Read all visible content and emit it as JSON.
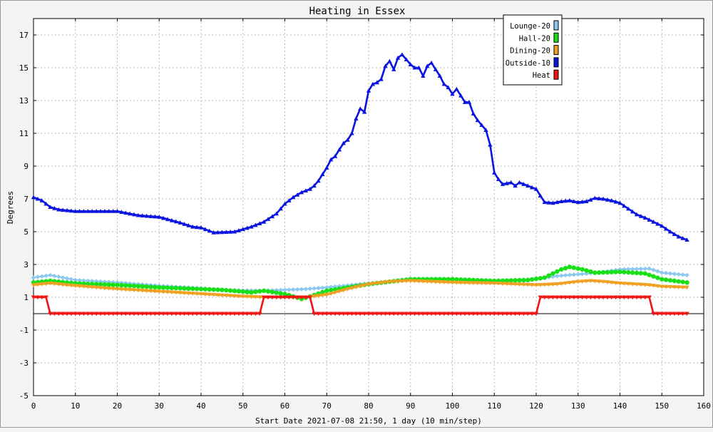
{
  "chart_data": {
    "type": "line",
    "title": "Heating in Essex",
    "xlabel": "Start Date 2021-07-08 21:50, 1 day (10 min/step)",
    "ylabel": "Degrees",
    "xlim": [
      0,
      160
    ],
    "ylim": [
      -5,
      18
    ],
    "xticks": [
      0,
      10,
      20,
      30,
      40,
      50,
      60,
      70,
      80,
      90,
      100,
      110,
      120,
      130,
      140,
      150,
      160
    ],
    "yticks": [
      -5,
      -3,
      -1,
      1,
      3,
      5,
      7,
      9,
      11,
      13,
      15,
      17
    ],
    "grid": true,
    "legend_position": "top-right",
    "series": [
      {
        "name": "Lounge-20",
        "color": "#8cc8f0",
        "marker": "diamond",
        "points": [
          [
            0,
            2.2
          ],
          [
            4,
            2.35
          ],
          [
            10,
            2.05
          ],
          [
            20,
            1.9
          ],
          [
            30,
            1.7
          ],
          [
            40,
            1.55
          ],
          [
            45,
            1.45
          ],
          [
            55,
            1.4
          ],
          [
            60,
            1.45
          ],
          [
            65,
            1.5
          ],
          [
            70,
            1.6
          ],
          [
            80,
            1.85
          ],
          [
            90,
            2.05
          ],
          [
            100,
            2.1
          ],
          [
            110,
            2.0
          ],
          [
            120,
            2.1
          ],
          [
            125,
            2.3
          ],
          [
            130,
            2.4
          ],
          [
            135,
            2.5
          ],
          [
            140,
            2.7
          ],
          [
            147,
            2.75
          ],
          [
            150,
            2.5
          ],
          [
            156,
            2.35
          ]
        ]
      },
      {
        "name": "Hall-20",
        "color": "#18e018",
        "marker": "circle",
        "points": [
          [
            0,
            1.9
          ],
          [
            4,
            2.0
          ],
          [
            10,
            1.85
          ],
          [
            20,
            1.75
          ],
          [
            30,
            1.6
          ],
          [
            40,
            1.5
          ],
          [
            45,
            1.45
          ],
          [
            52,
            1.3
          ],
          [
            55,
            1.4
          ],
          [
            60,
            1.2
          ],
          [
            64,
            0.9
          ],
          [
            66,
            1.05
          ],
          [
            70,
            1.4
          ],
          [
            80,
            1.8
          ],
          [
            90,
            2.1
          ],
          [
            100,
            2.1
          ],
          [
            110,
            2.0
          ],
          [
            118,
            2.05
          ],
          [
            122,
            2.2
          ],
          [
            126,
            2.7
          ],
          [
            128,
            2.85
          ],
          [
            131,
            2.7
          ],
          [
            134,
            2.5
          ],
          [
            140,
            2.55
          ],
          [
            146,
            2.45
          ],
          [
            150,
            2.1
          ],
          [
            156,
            1.9
          ]
        ]
      },
      {
        "name": "Dining-20",
        "color": "#f0a020",
        "marker": "triangle-down",
        "points": [
          [
            0,
            1.75
          ],
          [
            4,
            1.85
          ],
          [
            10,
            1.7
          ],
          [
            20,
            1.5
          ],
          [
            30,
            1.35
          ],
          [
            40,
            1.2
          ],
          [
            50,
            1.05
          ],
          [
            55,
            1.0
          ],
          [
            60,
            1.0
          ],
          [
            65,
            1.0
          ],
          [
            70,
            1.15
          ],
          [
            75,
            1.5
          ],
          [
            80,
            1.8
          ],
          [
            85,
            1.95
          ],
          [
            90,
            2.0
          ],
          [
            95,
            1.95
          ],
          [
            100,
            1.9
          ],
          [
            110,
            1.85
          ],
          [
            120,
            1.75
          ],
          [
            125,
            1.8
          ],
          [
            130,
            1.95
          ],
          [
            133,
            2.0
          ],
          [
            136,
            1.95
          ],
          [
            140,
            1.85
          ],
          [
            147,
            1.75
          ],
          [
            150,
            1.65
          ],
          [
            156,
            1.6
          ]
        ]
      },
      {
        "name": "Outside-10",
        "color": "#0a14e0",
        "marker": "triangle-up",
        "points": [
          [
            0,
            7.1
          ],
          [
            2,
            6.9
          ],
          [
            4,
            6.5
          ],
          [
            6,
            6.35
          ],
          [
            10,
            6.25
          ],
          [
            20,
            6.25
          ],
          [
            25,
            6.0
          ],
          [
            30,
            5.9
          ],
          [
            35,
            5.55
          ],
          [
            38,
            5.3
          ],
          [
            40,
            5.25
          ],
          [
            43,
            4.95
          ],
          [
            48,
            5.0
          ],
          [
            52,
            5.3
          ],
          [
            55,
            5.6
          ],
          [
            58,
            6.1
          ],
          [
            60,
            6.7
          ],
          [
            62,
            7.1
          ],
          [
            64,
            7.4
          ],
          [
            66,
            7.6
          ],
          [
            67,
            7.8
          ],
          [
            68,
            8.1
          ],
          [
            69,
            8.5
          ],
          [
            70,
            8.9
          ],
          [
            71,
            9.4
          ],
          [
            72,
            9.6
          ],
          [
            73,
            10.0
          ],
          [
            74,
            10.4
          ],
          [
            75,
            10.6
          ],
          [
            76,
            11.0
          ],
          [
            77,
            11.9
          ],
          [
            78,
            12.5
          ],
          [
            79,
            12.3
          ],
          [
            80,
            13.6
          ],
          [
            81,
            14.0
          ],
          [
            82,
            14.1
          ],
          [
            83,
            14.3
          ],
          [
            84,
            15.1
          ],
          [
            85,
            15.4
          ],
          [
            86,
            14.9
          ],
          [
            87,
            15.6
          ],
          [
            88,
            15.8
          ],
          [
            89,
            15.5
          ],
          [
            90,
            15.2
          ],
          [
            91,
            15.0
          ],
          [
            92,
            15.0
          ],
          [
            93,
            14.5
          ],
          [
            94,
            15.1
          ],
          [
            95,
            15.3
          ],
          [
            96,
            14.9
          ],
          [
            97,
            14.5
          ],
          [
            98,
            14.0
          ],
          [
            99,
            13.8
          ],
          [
            100,
            13.4
          ],
          [
            101,
            13.7
          ],
          [
            102,
            13.3
          ],
          [
            103,
            12.9
          ],
          [
            104,
            12.9
          ],
          [
            105,
            12.2
          ],
          [
            106,
            11.8
          ],
          [
            107,
            11.5
          ],
          [
            108,
            11.2
          ],
          [
            109,
            10.3
          ],
          [
            110,
            8.6
          ],
          [
            111,
            8.2
          ],
          [
            112,
            7.9
          ],
          [
            114,
            8.0
          ],
          [
            115,
            7.8
          ],
          [
            116,
            8.0
          ],
          [
            118,
            7.8
          ],
          [
            120,
            7.6
          ],
          [
            121,
            7.2
          ],
          [
            122,
            6.8
          ],
          [
            124,
            6.75
          ],
          [
            126,
            6.85
          ],
          [
            128,
            6.9
          ],
          [
            130,
            6.8
          ],
          [
            132,
            6.85
          ],
          [
            134,
            7.05
          ],
          [
            136,
            7.0
          ],
          [
            138,
            6.9
          ],
          [
            140,
            6.75
          ],
          [
            142,
            6.4
          ],
          [
            144,
            6.05
          ],
          [
            146,
            5.85
          ],
          [
            148,
            5.6
          ],
          [
            150,
            5.35
          ],
          [
            152,
            5.0
          ],
          [
            154,
            4.7
          ],
          [
            156,
            4.5
          ]
        ]
      },
      {
        "name": "Heat",
        "color": "#f01414",
        "marker": "triangle-down",
        "points": [
          [
            0,
            1
          ],
          [
            3,
            1
          ],
          [
            4,
            0
          ],
          [
            54,
            0
          ],
          [
            55,
            1
          ],
          [
            66,
            1
          ],
          [
            67,
            0
          ],
          [
            120,
            0
          ],
          [
            121,
            1
          ],
          [
            147,
            1
          ],
          [
            148,
            0
          ],
          [
            156,
            0
          ]
        ]
      }
    ]
  }
}
